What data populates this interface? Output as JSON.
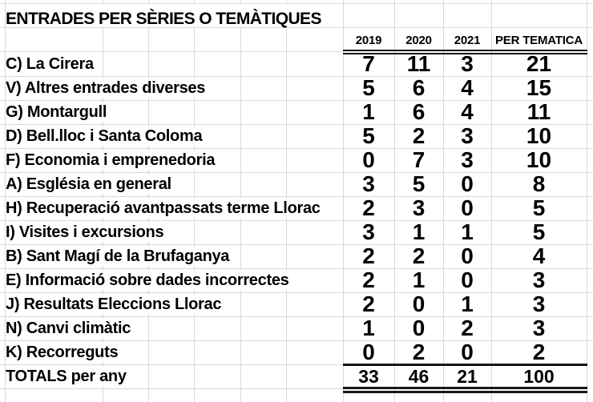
{
  "chart_data": {
    "type": "table",
    "title": "ENTRADES PER SÈRIES O TEMÀTIQUES",
    "columns": [
      "",
      "2019",
      "2020",
      "2021",
      "PER TEMATICA"
    ],
    "rows": [
      [
        "C) La Cirera",
        7,
        11,
        3,
        21
      ],
      [
        "V) Altres entrades diverses",
        5,
        6,
        4,
        15
      ],
      [
        "G) Montargull",
        1,
        6,
        4,
        11
      ],
      [
        "D) Bell.lloc i Santa Coloma",
        5,
        2,
        3,
        10
      ],
      [
        "F) Economia i emprenedoria",
        0,
        7,
        3,
        10
      ],
      [
        "A) Església en general",
        3,
        5,
        0,
        8
      ],
      [
        "H) Recuperació avantpassats terme Llorac",
        2,
        3,
        0,
        5
      ],
      [
        "I) Visites i excursions",
        3,
        1,
        1,
        5
      ],
      [
        "B) Sant Magí de la Brufaganya",
        2,
        2,
        0,
        4
      ],
      [
        "E) Informació sobre dades incorrectes",
        2,
        1,
        0,
        3
      ],
      [
        "J) Resultats Eleccions Llorac",
        2,
        0,
        1,
        3
      ],
      [
        "N) Canvi climàtic",
        1,
        0,
        2,
        3
      ],
      [
        "K) Recorreguts",
        0,
        2,
        0,
        2
      ]
    ],
    "totals_row": [
      "TOTALS per any",
      33,
      46,
      21,
      100
    ],
    "layout_hints": {
      "grid": "on",
      "header_border": "double",
      "totals_border": "single-above-double-below"
    }
  },
  "colors": {
    "background": "#ffffff",
    "grid_line": "#d8d8d8",
    "table_border": "#161616",
    "text": "#000000"
  }
}
